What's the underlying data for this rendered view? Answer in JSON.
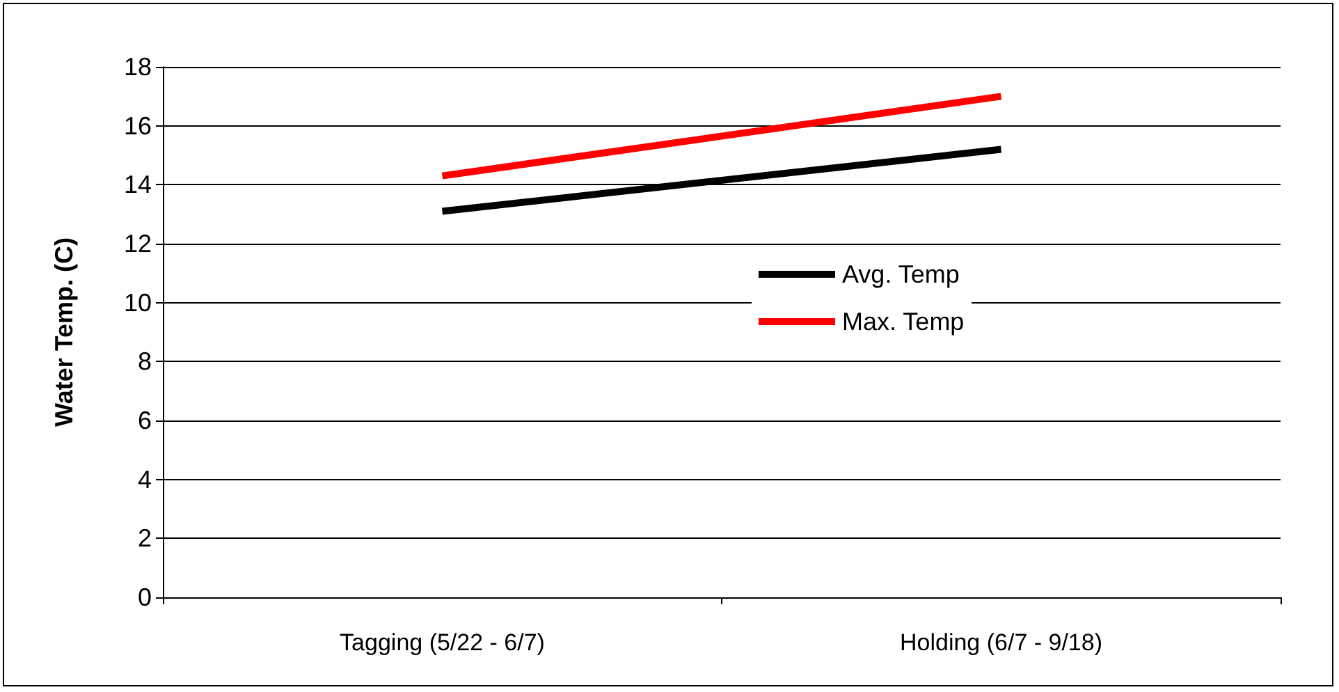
{
  "chart_data": {
    "type": "line",
    "ylabel": "Water Temp. (C)",
    "categories": [
      "Tagging (5/22 - 6/7)",
      "Holding (6/7 - 9/18)"
    ],
    "series": [
      {
        "name": "Avg. Temp",
        "color": "#000000",
        "values": [
          13.1,
          15.2
        ]
      },
      {
        "name": "Max. Temp",
        "color": "#ff0000",
        "values": [
          14.3,
          17.0
        ]
      }
    ],
    "ylim": [
      0,
      18
    ],
    "yticks": [
      0,
      2,
      4,
      6,
      8,
      10,
      12,
      14,
      16,
      18
    ],
    "grid": "y",
    "legend": "center",
    "marker": "none",
    "line_style": "solid"
  }
}
